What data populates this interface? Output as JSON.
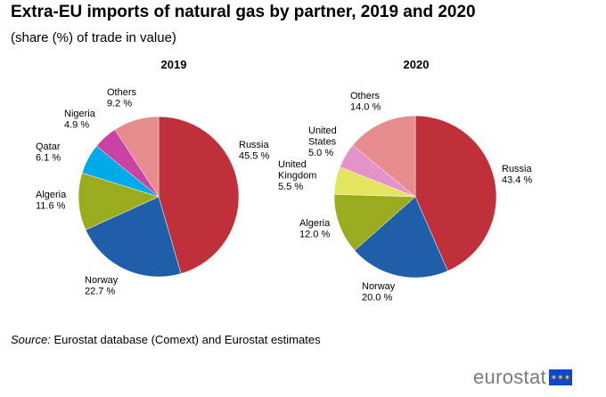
{
  "title": "Extra-EU imports of natural gas by partner, 2019 and 2020",
  "subtitle": "(share (%) of trade in value)",
  "source_label": "Source:",
  "source_text": "Eurostat database (Comext) and Eurostat estimates",
  "logo_text": "eurostat",
  "colors": {
    "Russia": "#c0303a",
    "Norway": "#1f5ea8",
    "Algeria": "#9aab1e",
    "Qatar": "#00a9e8",
    "Nigeria": "#c943a5",
    "Others": "#e68b8e",
    "United Kingdom": "#e4e55f",
    "United States": "#e493c8"
  },
  "chart_data": [
    {
      "type": "pie",
      "title": "2019",
      "slices": [
        {
          "name": "Russia",
          "label": [
            "Russia",
            "45.5 %"
          ],
          "value": 45.5
        },
        {
          "name": "Norway",
          "label": [
            "Norway",
            "22.7 %"
          ],
          "value": 22.7
        },
        {
          "name": "Algeria",
          "label": [
            "Algeria",
            "11.6 %"
          ],
          "value": 11.6
        },
        {
          "name": "Qatar",
          "label": [
            "Qatar",
            "6.1 %"
          ],
          "value": 6.1
        },
        {
          "name": "Nigeria",
          "label": [
            "Nigeria",
            "4.9 %"
          ],
          "value": 4.9
        },
        {
          "name": "Others",
          "label": [
            "Others",
            "9.2 %"
          ],
          "value": 9.2
        }
      ]
    },
    {
      "type": "pie",
      "title": "2020",
      "slices": [
        {
          "name": "Russia",
          "label": [
            "Russia",
            "43.4 %"
          ],
          "value": 43.4
        },
        {
          "name": "Norway",
          "label": [
            "Norway",
            "20.0 %"
          ],
          "value": 20.0
        },
        {
          "name": "Algeria",
          "label": [
            "Algeria",
            "12.0 %"
          ],
          "value": 12.0
        },
        {
          "name": "United Kingdom",
          "label": [
            "United",
            "Kingdom",
            "5.5 %"
          ],
          "value": 5.5
        },
        {
          "name": "United States",
          "label": [
            "United",
            "States",
            "5.0 %"
          ],
          "value": 5.0
        },
        {
          "name": "Others",
          "label": [
            "Others",
            "14.0 %"
          ],
          "value": 14.0
        }
      ]
    }
  ]
}
